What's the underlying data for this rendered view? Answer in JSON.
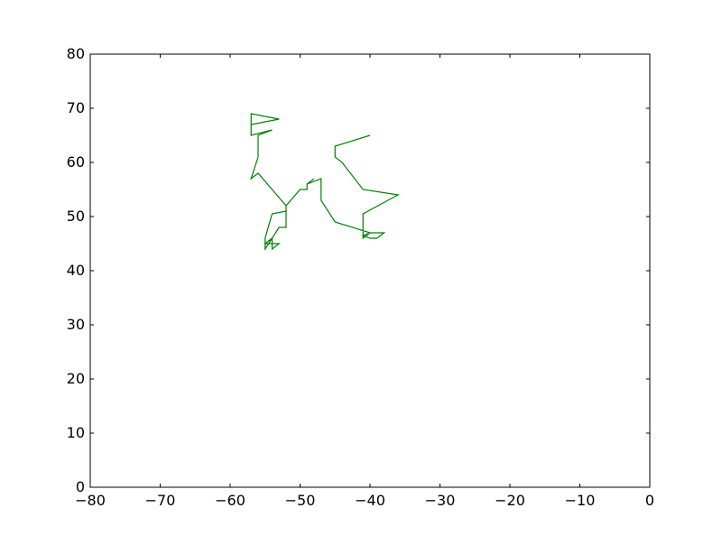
{
  "chart_data": {
    "type": "line",
    "title": "",
    "xlabel": "",
    "ylabel": "",
    "xlim": [
      -80,
      0
    ],
    "ylim": [
      0,
      80
    ],
    "xticks": [
      -80,
      -70,
      -60,
      -50,
      -40,
      -30,
      -20,
      -10,
      0
    ],
    "yticks": [
      0,
      10,
      20,
      30,
      40,
      50,
      60,
      70,
      80
    ],
    "grid": false,
    "series": [
      {
        "color": "#008000",
        "x": [
          -40.0,
          -45.0,
          -45.0,
          -44.0,
          -41.0,
          -36.0,
          -41.0,
          -41.0,
          -40.0,
          -41.0,
          -40.0,
          -39.0,
          -38.0,
          -40.0,
          -45.0,
          -47.0,
          -47.0,
          -49.0,
          -48.0,
          -49.0,
          -49.0,
          -50.0,
          -52.0,
          -52.0,
          -54.0,
          -55.0,
          -55.0,
          -54.0,
          -55.0,
          -53.0,
          -54.0,
          -54.0,
          -55.0,
          -54.0,
          -53.0,
          -52.0,
          -52.0,
          -54.0,
          -56.0,
          -57.0,
          -56.0,
          -56.0,
          -55.0,
          -54.0,
          -57.0,
          -57.0,
          -53.0,
          -57.0,
          -57.0
        ],
        "y": [
          65.0,
          63.0,
          61.0,
          60.0,
          55.0,
          54.0,
          50.5,
          46.0,
          47.0,
          46.5,
          46.0,
          46.0,
          47.0,
          47.0,
          49.0,
          53.0,
          57.0,
          56.0,
          57.0,
          56.0,
          55.0,
          55.0,
          52.0,
          51.0,
          50.5,
          46.0,
          44.0,
          46.0,
          45.0,
          45.0,
          44.0,
          46.0,
          44.0,
          46.0,
          48.0,
          48.0,
          52.0,
          55.0,
          58.0,
          57.0,
          61.0,
          65.0,
          65.5,
          66.0,
          65.0,
          69.0,
          68.0,
          67.0,
          66.0
        ]
      }
    ]
  }
}
